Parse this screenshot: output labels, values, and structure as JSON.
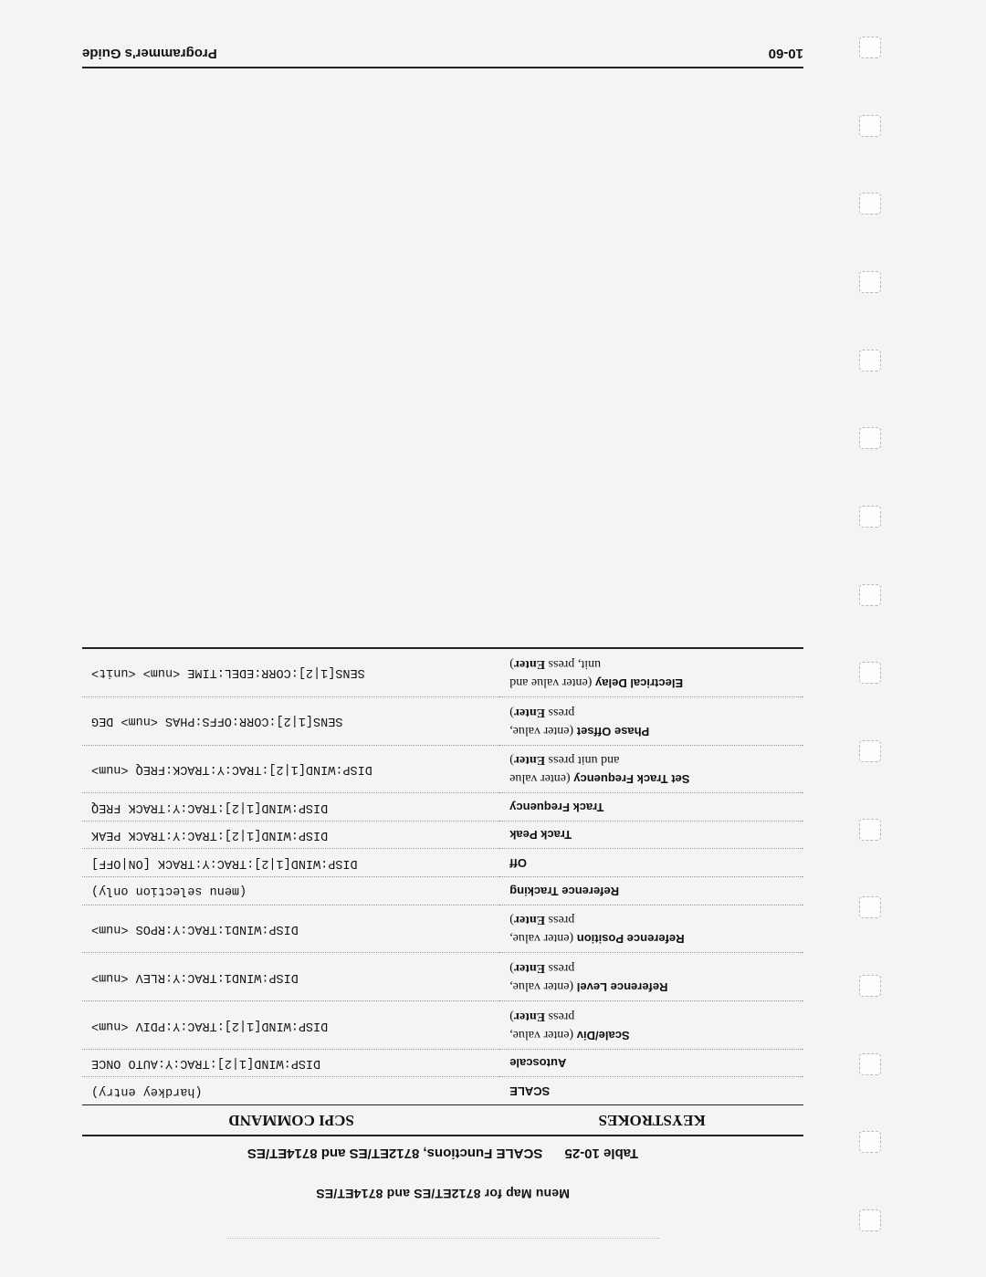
{
  "menu_map": "Menu Map for 8712ET/ES and 8714ET/ES",
  "caption": {
    "num": "Table 10-25",
    "title": "SCALE Functions, 8712ET/ES and 8714ET/ES"
  },
  "headers": {
    "keystrokes": "KEYSTROKES",
    "scpi": "SCPI COMMAND"
  },
  "rows": [
    {
      "k": "<b>SCALE</b>",
      "c": "(hardkey entry)"
    },
    {
      "k": "<b>Autoscale</b>",
      "c": "DISP:WIND[1|2]:TRAC:Y:AUTO ONCE"
    },
    {
      "k": "<b>Scale/Div</b> <span class='plain'>(enter value,<br>press <b>Enter</b>)</span>",
      "c": "DISP:WIND[1|2]:TRAC:Y:PDIV &lt;num&gt;"
    },
    {
      "k": "<b>Reference Level</b> <span class='plain'>(enter value,<br>press <b>Enter</b>)</span>",
      "c": "DISP:WIND1:TRAC:Y:RLEV &lt;num&gt;"
    },
    {
      "k": "<b>Reference Position</b> <span class='plain'>(enter value,<br>press <b>Enter</b>)</span>",
      "c": "DISP:WIND1:TRAC:Y:RPOS &lt;num&gt;"
    },
    {
      "k": "<b>Reference Tracking</b>",
      "c": "(menu selection only)"
    },
    {
      "k": "<b>Off</b>",
      "c": "DISP:WIND[1|2]:TRAC:Y:TRACK [ON|OFF]"
    },
    {
      "k": "<b>Track Peak</b>",
      "c": "DISP:WIND[1|2]:TRAC:Y:TRACK PEAK"
    },
    {
      "k": "<b>Track Frequency</b>",
      "c": "DISP:WIND[1|2]:TRAC:Y:TRACK FREQ"
    },
    {
      "k": "<b>Set Track Frequency</b> <span class='plain'>(enter value<br>and unit press <b>Enter</b>)</span>",
      "c": "DISP:WIND[1|2]:TRAC:Y:TRACK:FREQ &lt;num&gt;"
    },
    {
      "k": "<b>Phase Offset</b> <span class='plain'>(enter value,<br>press <b>Enter</b>)</span>",
      "c": "SENS[1|2]:CORR:OFFS:PHAS &lt;num&gt; DEG"
    },
    {
      "k": "<b>Electrical Delay</b> <span class='plain'>(enter value and<br>unit, press <b>Enter</b>)</span>",
      "c": "SENS[1|2]:CORR:EDEL:TIME &lt;num&gt; &lt;unit&gt;"
    }
  ],
  "footer": {
    "page": "10-60",
    "title": "Programmer's Guide"
  }
}
